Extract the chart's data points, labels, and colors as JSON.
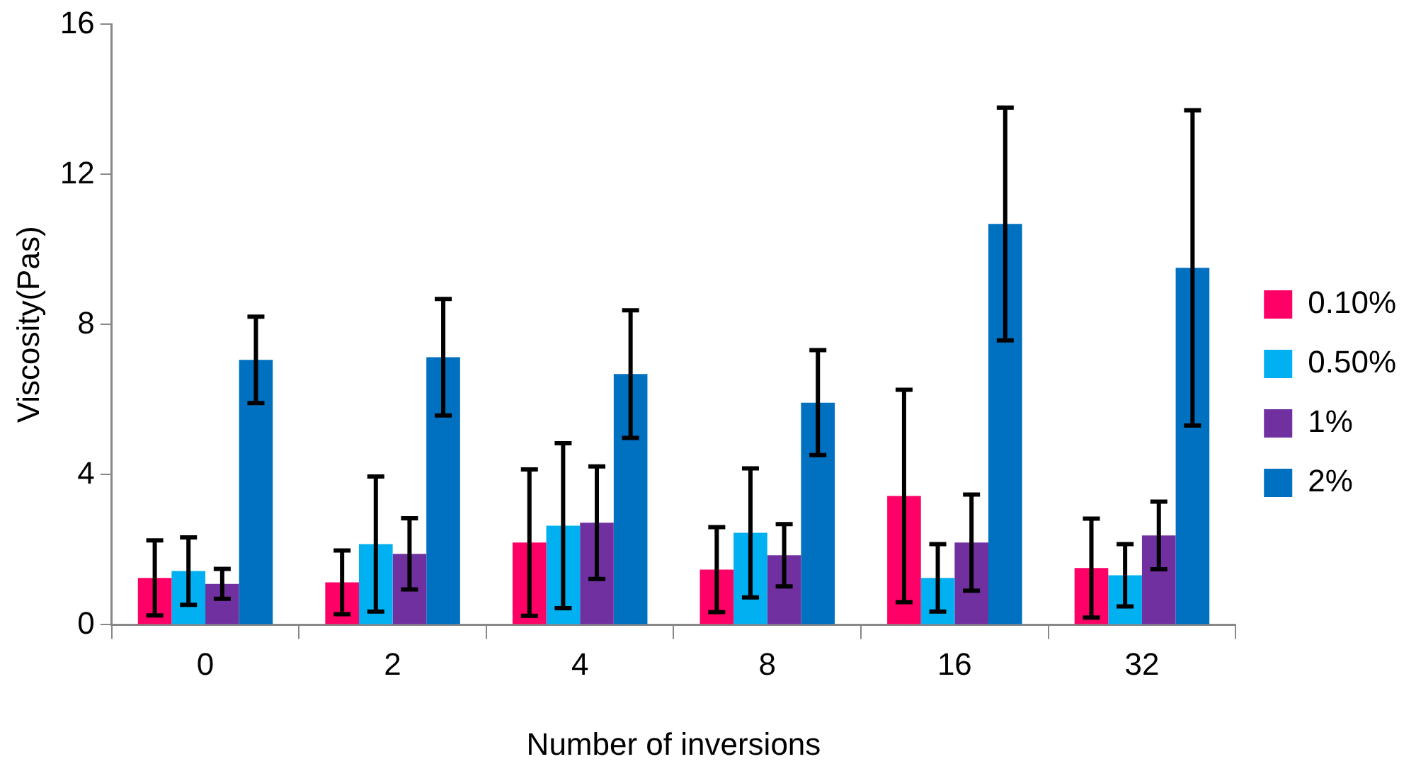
{
  "chart_data": {
    "type": "bar",
    "xlabel": "Number of inversions",
    "ylabel": "Viscosity(Pas)",
    "categories": [
      "0",
      "2",
      "4",
      "8",
      "16",
      "32"
    ],
    "series": [
      {
        "name": "0.10%",
        "color": "#ff0066",
        "values": [
          1.25,
          1.13,
          2.19,
          1.47,
          3.43,
          1.51
        ],
        "errors": [
          1.0,
          0.85,
          1.95,
          1.13,
          2.83,
          1.32
        ]
      },
      {
        "name": "0.50%",
        "color": "#00b0f0",
        "values": [
          1.43,
          2.15,
          2.64,
          2.45,
          1.25,
          1.32
        ],
        "errors": [
          0.9,
          1.8,
          2.2,
          1.72,
          0.9,
          0.83
        ]
      },
      {
        "name": "1%",
        "color": "#7030a0",
        "values": [
          1.09,
          1.89,
          2.72,
          1.85,
          2.19,
          2.38
        ],
        "errors": [
          0.4,
          0.95,
          1.5,
          0.83,
          1.28,
          0.9
        ]
      },
      {
        "name": "2%",
        "color": "#0070c0",
        "values": [
          7.06,
          7.13,
          6.68,
          5.92,
          10.68,
          9.51
        ],
        "errors": [
          1.15,
          1.55,
          1.7,
          1.4,
          3.1,
          4.2
        ]
      }
    ],
    "ylim": [
      0,
      16
    ],
    "yticks": [
      0,
      4,
      8,
      12,
      16
    ],
    "grid": false,
    "legend": "right"
  }
}
